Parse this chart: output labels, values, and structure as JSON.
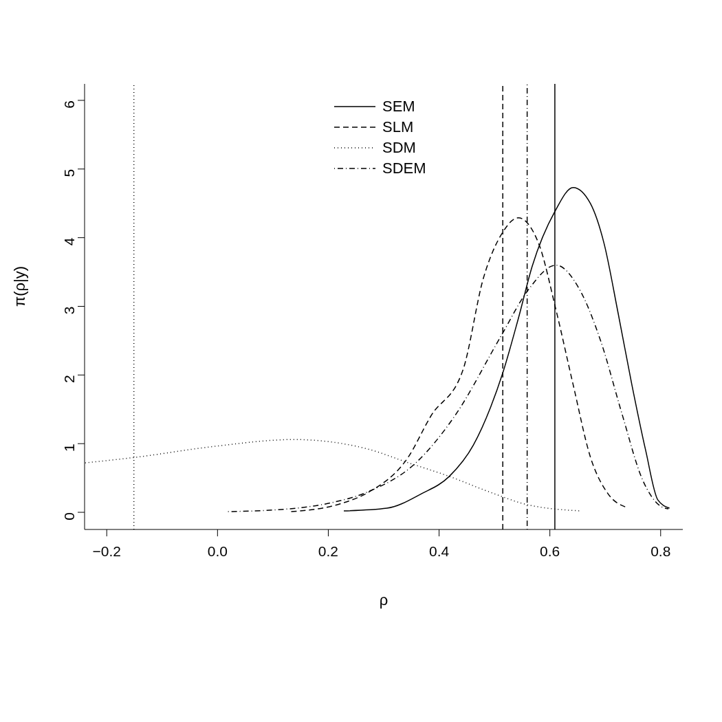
{
  "chart_data": {
    "type": "line",
    "xlabel": "ρ",
    "ylabel": "π(ρ|y)",
    "xlim": [
      -0.24,
      0.84
    ],
    "ylim": [
      -0.25,
      6.24
    ],
    "xticks": [
      {
        "value": -0.2,
        "label": "−0.2"
      },
      {
        "value": 0,
        "label": "0.0"
      },
      {
        "value": 0.2,
        "label": "0.2"
      },
      {
        "value": 0.4,
        "label": "0.4"
      },
      {
        "value": 0.6,
        "label": "0.6"
      },
      {
        "value": 0.8,
        "label": "0.8"
      }
    ],
    "yticks": [
      0,
      1,
      2,
      3,
      4,
      5,
      6
    ],
    "grid": false,
    "legend": "top",
    "marker": "none",
    "series": [
      {
        "name": "SEM",
        "color": "#000000",
        "line_style": "solid",
        "x": [
          0.228,
          0.306,
          0.368,
          0.418,
          0.462,
          0.493,
          0.515,
          0.543,
          0.568,
          0.609,
          0.642,
          0.673,
          0.698,
          0.723,
          0.748,
          0.773,
          0.795,
          0.816
        ],
        "values": [
          0.02,
          0.06,
          0.27,
          0.52,
          0.98,
          1.53,
          2.03,
          2.82,
          3.58,
          4.38,
          4.73,
          4.5,
          3.91,
          2.91,
          1.86,
          0.9,
          0.18,
          0.06
        ]
      },
      {
        "name": "SLM",
        "color": "#000000",
        "line_style": "dashed",
        "x": [
          0.133,
          0.224,
          0.272,
          0.344,
          0.385,
          0.443,
          0.48,
          0.515,
          0.543,
          0.58,
          0.611,
          0.642,
          0.673,
          0.705,
          0.739
        ],
        "values": [
          0.01,
          0.13,
          0.29,
          0.8,
          1.4,
          2.07,
          3.41,
          4.08,
          4.29,
          3.91,
          2.95,
          1.86,
          0.81,
          0.27,
          0.07
        ]
      },
      {
        "name": "SDM",
        "color": "#000000",
        "line_style": "dotted",
        "x": [
          -0.239,
          -0.149,
          -0.006,
          0.138,
          0.2,
          0.272,
          0.345,
          0.416,
          0.493,
          0.555,
          0.655
        ],
        "values": [
          0.72,
          0.8,
          0.96,
          1.06,
          1.03,
          0.92,
          0.72,
          0.53,
          0.29,
          0.12,
          0.02
        ]
      },
      {
        "name": "SDEM",
        "color": "#000000",
        "line_style": "dashdot",
        "x": [
          0.019,
          0.129,
          0.2,
          0.272,
          0.358,
          0.428,
          0.512,
          0.561,
          0.611,
          0.654,
          0.692,
          0.73,
          0.767,
          0.798,
          0.814
        ],
        "values": [
          0.01,
          0.05,
          0.13,
          0.3,
          0.72,
          1.4,
          2.57,
          3.24,
          3.6,
          3.24,
          2.49,
          1.44,
          0.48,
          0.1,
          0.05
        ]
      }
    ],
    "ref_lines": [
      {
        "axis": "x",
        "value": 0.609,
        "color": "#000000",
        "line_style": "solid"
      },
      {
        "axis": "x",
        "value": 0.515,
        "color": "#000000",
        "line_style": "dashed"
      },
      {
        "axis": "x",
        "value": -0.151,
        "color": "#000000",
        "line_style": "dotted"
      },
      {
        "axis": "x",
        "value": 0.559,
        "color": "#000000",
        "line_style": "dashdot"
      }
    ]
  }
}
